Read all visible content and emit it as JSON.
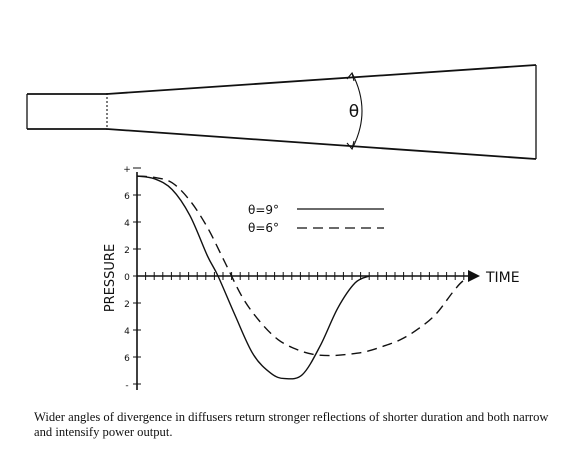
{
  "diagram": {
    "angle_symbol": "θ"
  },
  "chart": {
    "ylabel": "PRESSURE",
    "xlabel": "TIME",
    "y_ticks": [
      "+",
      "6",
      "4",
      "2",
      "0",
      "2",
      "4",
      "6",
      "-"
    ],
    "legend": [
      {
        "label": "θ=9°",
        "style": "solid"
      },
      {
        "label": "θ=6°",
        "style": "dashed"
      }
    ]
  },
  "chart_data": {
    "type": "line",
    "xlabel": "TIME",
    "ylabel": "PRESSURE",
    "ylim": [
      -8,
      8
    ],
    "series": [
      {
        "name": "θ=9°",
        "x": [
          0,
          5,
          10,
          15,
          20,
          23,
          28,
          33,
          38,
          42,
          47,
          52,
          57,
          62,
          66
        ],
        "y": [
          7.4,
          7.2,
          6.4,
          4.5,
          1.5,
          0,
          -3.0,
          -5.8,
          -7.2,
          -7.6,
          -7.3,
          -5.2,
          -2.4,
          -0.5,
          0
        ]
      },
      {
        "name": "θ=6°",
        "x": [
          0,
          5,
          10,
          15,
          20,
          25,
          30,
          35,
          40,
          45,
          50,
          55,
          60,
          65,
          70,
          75,
          80,
          85,
          90,
          93,
          97
        ],
        "y": [
          7.4,
          7.3,
          6.9,
          5.6,
          3.6,
          1.0,
          -1.6,
          -3.4,
          -4.7,
          -5.4,
          -5.8,
          -5.9,
          -5.8,
          -5.6,
          -5.2,
          -4.7,
          -3.9,
          -2.8,
          -1.1,
          -0.3,
          0
        ]
      }
    ]
  },
  "caption": "Wider angles of divergence in diffusers return stronger reflections of shorter duration and both narrow and intensify power output."
}
